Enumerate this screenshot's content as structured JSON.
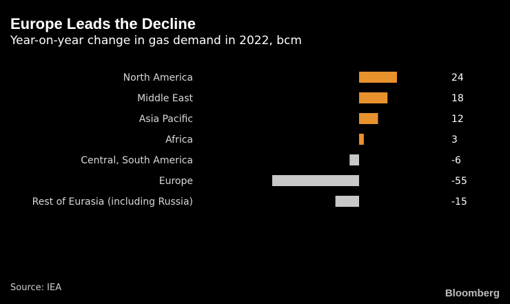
{
  "chart_data": {
    "type": "bar",
    "orientation": "horizontal",
    "title": "Europe Leads the Decline",
    "subtitle": "Year-on-year change in gas demand in 2022, bcm",
    "categories": [
      "North America",
      "Middle East",
      "Asia Pacific",
      "Africa",
      "Central, South America",
      "Europe",
      "Rest of Eurasia (including Russia)"
    ],
    "values": [
      24,
      18,
      12,
      3,
      -6,
      -55,
      -15
    ],
    "value_labels": [
      "24",
      "18",
      "12",
      "3",
      "-6",
      "-55",
      "-15"
    ],
    "xlim": [
      -55,
      24
    ],
    "colors": {
      "positive": "#e8922e",
      "negative": "#c8c8c8"
    },
    "source": "Source: IEA"
  },
  "branding": {
    "logo_text": "Bloomberg"
  },
  "colors": {
    "background": "#000000",
    "text": "#ffffff",
    "label": "#d9d9d9"
  }
}
